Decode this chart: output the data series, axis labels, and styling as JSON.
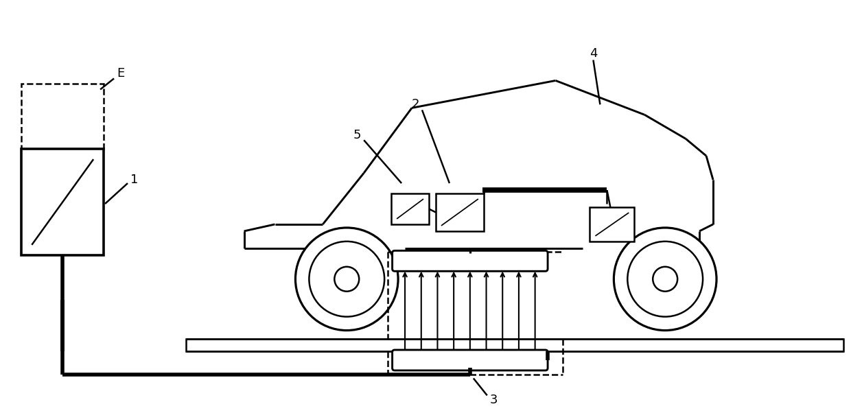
{
  "bg_color": "#ffffff",
  "line_color": "#000000",
  "lw": 1.8,
  "lw_thick": 4.0,
  "lw_car": 1.5,
  "fig_width": 12.4,
  "fig_height": 6.02,
  "dpi": 100,
  "font_size": 13
}
